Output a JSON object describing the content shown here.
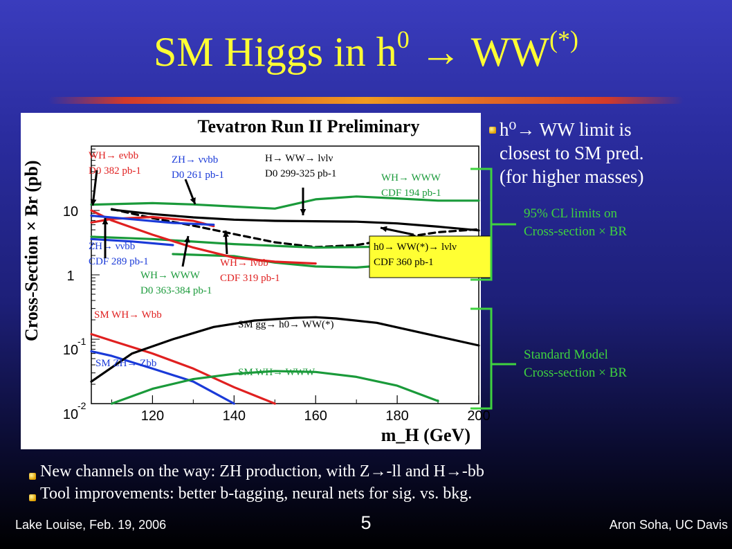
{
  "slide": {
    "title_main": "SM Higgs in h",
    "title_sup0": "0",
    "title_arrow": "→",
    "title_ww": " WW",
    "title_sup": "(*)",
    "side_bullet_lines": [
      "h⁰→  WW limit is",
      "closest to SM pred.",
      "(for higher masses)"
    ],
    "bracket1_lines": [
      "95% CL limits on",
      "Cross-section × BR"
    ],
    "bracket2_lines": [
      "Standard Model",
      "Cross-section × BR"
    ],
    "bottom_bullets": [
      "New channels on the way:  ZH production, with Z→-ll and H→-bb",
      "Tool improvements:  better b-tagging, neural nets for sig. vs. bkg."
    ],
    "footer_left": "Lake Louise, Feb. 19, 2006",
    "footer_right": "Aron Soha, UC Davis",
    "slide_number": "5",
    "colors": {
      "title": "#ffff33",
      "accent_green": "#3fd23f",
      "limit_black": "#000000",
      "red": "#e02020",
      "blue": "#1a3ad8",
      "green": "#1a9a3a"
    }
  },
  "chart_data": {
    "type": "line",
    "title": "Tevatron Run II Preliminary",
    "xlabel": "m_H (GeV)",
    "ylabel": "Cross-Section × Br (pb)",
    "xlim": [
      105,
      200
    ],
    "ylim_log10": [
      -2,
      2
    ],
    "y_scale": "log",
    "x_ticks": [
      120,
      140,
      160,
      180,
      200
    ],
    "y_ticks": [
      {
        "value": 10,
        "label": "10"
      },
      {
        "value": 1,
        "label": "1"
      },
      {
        "value": 0.1,
        "label": "10",
        "exp": "-1"
      },
      {
        "value": 0.01,
        "label": "10",
        "exp": "-2"
      }
    ],
    "series": [
      {
        "color": "#000000",
        "dash": false,
        "x": [
          110,
          120,
          130,
          140,
          150,
          160,
          170,
          180,
          190,
          200
        ],
        "y": [
          10.3,
          8.8,
          7.8,
          7.2,
          6.9,
          6.8,
          6.7,
          6.3,
          5.6,
          4.9
        ]
      },
      {
        "color": "#000000",
        "dash": true,
        "x": [
          110,
          120,
          130,
          140,
          150,
          160,
          170,
          180,
          190,
          200
        ],
        "y": [
          10.5,
          7.6,
          5.8,
          4.3,
          3.2,
          2.7,
          2.9,
          3.7,
          4.6,
          5.1
        ]
      },
      {
        "color": "#1a9a3a",
        "dash": false,
        "x": [
          105,
          120,
          130,
          140,
          150,
          160,
          170,
          180,
          190,
          200
        ],
        "y": [
          12.3,
          13.0,
          12.4,
          11.5,
          10.7,
          14.9,
          16.5,
          15.4,
          14.2,
          14.2
        ]
      },
      {
        "color": "#1a9a3a",
        "dash": false,
        "x": [
          105,
          120,
          140,
          160,
          180,
          200
        ],
        "y": [
          3.9,
          3.6,
          3.0,
          2.65,
          2.75,
          3.1
        ]
      },
      {
        "color": "#1a9a3a",
        "dash": false,
        "x": [
          125,
          140,
          150,
          160,
          170,
          180,
          190,
          200
        ],
        "y": [
          2.1,
          1.95,
          1.55,
          1.35,
          1.3,
          1.45,
          1.65,
          1.85
        ]
      },
      {
        "color": "#e02020",
        "dash": false,
        "x": [
          105,
          110,
          120,
          130,
          135
        ],
        "y": [
          6.5,
          7.4,
          7.9,
          6.9,
          5.7
        ]
      },
      {
        "color": "#e02020",
        "dash": false,
        "x": [
          105,
          110,
          120,
          130,
          140,
          150,
          160
        ],
        "y": [
          10.0,
          7.0,
          4.2,
          2.65,
          1.85,
          1.6,
          1.5
        ]
      },
      {
        "color": "#1a3ad8",
        "dash": false,
        "x": [
          105,
          115,
          125,
          135
        ],
        "y": [
          8.3,
          7.3,
          6.4,
          6.0
        ]
      },
      {
        "color": "#1a3ad8",
        "dash": false,
        "x": [
          105,
          115,
          125
        ],
        "y": [
          3.6,
          3.3,
          2.9
        ]
      },
      {
        "color": "#e02020",
        "dash": false,
        "x": [
          105,
          110,
          120,
          130,
          140,
          150
        ],
        "y": [
          0.12,
          0.095,
          0.06,
          0.035,
          0.018,
          0.01
        ]
      },
      {
        "color": "#1a3ad8",
        "dash": false,
        "x": [
          105,
          110,
          120,
          130,
          140
        ],
        "y": [
          0.065,
          0.055,
          0.035,
          0.022,
          0.01
        ]
      },
      {
        "color": "#000000",
        "dash": false,
        "x": [
          105,
          115,
          125,
          135,
          145,
          155,
          160,
          165,
          175,
          185,
          200
        ],
        "y": [
          0.022,
          0.06,
          0.1,
          0.155,
          0.195,
          0.215,
          0.22,
          0.21,
          0.18,
          0.13,
          0.08
        ]
      },
      {
        "color": "#1a9a3a",
        "dash": false,
        "x": [
          110,
          120,
          130,
          140,
          150,
          160,
          170,
          180,
          190
        ],
        "y": [
          0.01,
          0.017,
          0.024,
          0.029,
          0.032,
          0.031,
          0.026,
          0.019,
          0.011
        ]
      }
    ],
    "annotations": [
      {
        "lines": [
          "WH→ eνbb",
          "D0 382 pb-1"
        ],
        "color": "#e02020"
      },
      {
        "lines": [
          "ZH→ ννbb",
          "D0 261 pb-1"
        ],
        "color": "#1a3ad8"
      },
      {
        "lines": [
          "H→ WW→ lνlν",
          "D0 299-325 pb-1"
        ],
        "color": "#000000"
      },
      {
        "lines": [
          "WH→ WWW",
          "CDF 194 pb-1"
        ],
        "color": "#1a9a3a"
      },
      {
        "lines": [
          "ZH→ ννbb",
          "CDF 289 pb-1"
        ],
        "color": "#1a3ad8"
      },
      {
        "lines": [
          "WH→ WWW",
          "D0 363-384 pb-1"
        ],
        "color": "#1a9a3a"
      },
      {
        "lines": [
          "WH→ lνbb",
          "CDF 319 pb-1"
        ],
        "color": "#e02020"
      },
      {
        "lines": [
          "h0→ WW(*)→ lνlν",
          "CDF 360 pb-1"
        ],
        "color": "#000000",
        "boxed": true
      },
      {
        "lines": [
          "SM WH→ Wbb"
        ],
        "color": "#e02020"
      },
      {
        "lines": [
          "SM gg→ h0→ WW(*)"
        ],
        "color": "#000000"
      },
      {
        "lines": [
          "SM ZH→ Zbb"
        ],
        "color": "#1a3ad8"
      },
      {
        "lines": [
          "SM WH→ WWW"
        ],
        "color": "#1a9a3a"
      }
    ]
  }
}
